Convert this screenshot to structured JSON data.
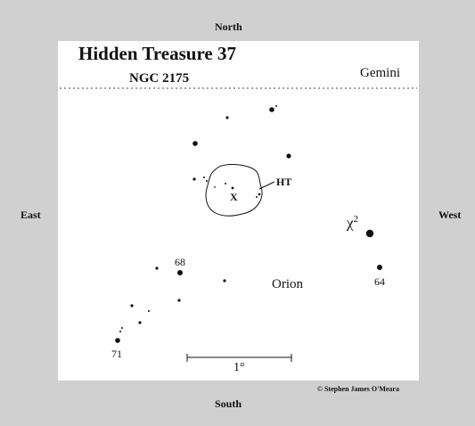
{
  "compass": {
    "north": "North",
    "south": "South",
    "east": "East",
    "west": "West"
  },
  "title": "Hidden Treasure 37",
  "object": "NGC 2175",
  "constellations": {
    "upper": "Gemini",
    "lower": "Orion"
  },
  "labels": {
    "ht": "HT",
    "cluster_mark": "X",
    "chi_base": "χ",
    "chi_exp": "2",
    "star_68": "68",
    "star_64": "64",
    "star_71": "71",
    "scale": "1°"
  },
  "credit": "© Stephen James O'Meara",
  "colors": {
    "background": "#d0d0d0",
    "panel": "#ffffff",
    "ink": "#111111"
  }
}
